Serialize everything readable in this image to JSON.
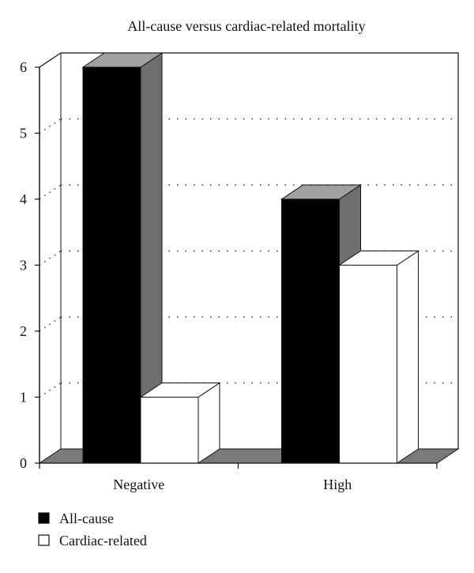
{
  "chart_data": {
    "type": "bar",
    "title": "All-cause versus cardiac-related mortality",
    "xlabel": "",
    "ylabel": "",
    "categories": [
      "Negative",
      "High"
    ],
    "series": [
      {
        "name": "All-cause",
        "values": [
          6,
          4
        ],
        "color": "#000000"
      },
      {
        "name": "Cardiac-related",
        "values": [
          1,
          3
        ],
        "color": "#ffffff"
      }
    ],
    "ylim": [
      0,
      6
    ],
    "yticks": [
      "0",
      "1",
      "2",
      "3",
      "4",
      "5",
      "6"
    ],
    "grid": true,
    "legend_position": "bottom-left",
    "style": "3d"
  }
}
